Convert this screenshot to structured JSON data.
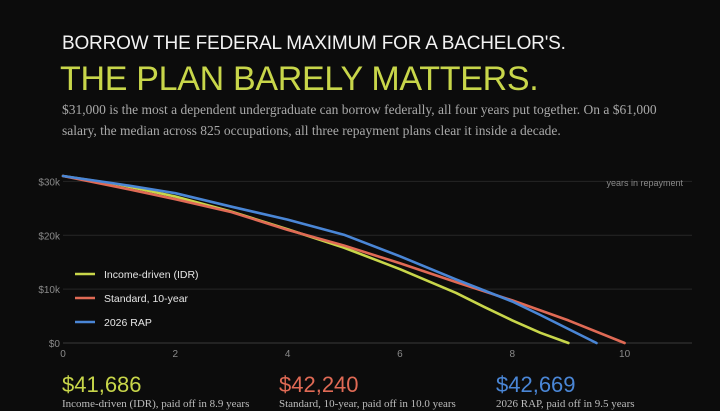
{
  "header": {
    "kicker": "BORROW THE FEDERAL MAXIMUM FOR A BACHELOR'S.",
    "headline": "THE PLAN BARELY MATTERS.",
    "dek": "$31,000 is the most a dependent undergraduate can borrow federally, all four years put together. On a $61,000 salary, the median across 825 occupations, all three repayment plans clear it inside a decade."
  },
  "colors": {
    "background": "#0c0c0c",
    "grid": "#262626",
    "headline": "#c8d64a"
  },
  "chart_data": {
    "type": "line",
    "xlabel": "",
    "ylabel": "",
    "x_note": "years in repayment",
    "xlim": [
      0,
      11.2
    ],
    "ylim": [
      0,
      31000
    ],
    "x_ticks": [
      0,
      2,
      4,
      6,
      8,
      10
    ],
    "x_tick_labels": [
      "0",
      "2",
      "4",
      "6",
      "8",
      "10"
    ],
    "y_ticks": [
      0,
      10000,
      20000,
      30000
    ],
    "y_tick_labels": [
      "$0",
      "$10k",
      "$20k",
      "$30k"
    ],
    "grid": "horizontal",
    "legend": "bottom-left",
    "series": [
      {
        "name": "Income-driven (IDR)",
        "color": "#c8d64a",
        "x": [
          0,
          1,
          2,
          3,
          4,
          5,
          6,
          7,
          7.5,
          8,
          8.5,
          9.0
        ],
        "y": [
          31000,
          29400,
          27200,
          24400,
          21100,
          17700,
          13700,
          9300,
          6700,
          4200,
          1900,
          0
        ]
      },
      {
        "name": "Standard, 10-year",
        "color": "#e06a55",
        "x": [
          0,
          1,
          2,
          3,
          4,
          5,
          6,
          7,
          8,
          9,
          10.0
        ],
        "y": [
          31000,
          28900,
          26700,
          24300,
          21000,
          18100,
          14800,
          11300,
          7900,
          4200,
          0
        ]
      },
      {
        "name": "2026 RAP",
        "color": "#4a86d6",
        "x": [
          0,
          1,
          2,
          3,
          4,
          5,
          6,
          7,
          8,
          8.5,
          9,
          9.5
        ],
        "y": [
          31000,
          29500,
          27800,
          25300,
          22900,
          20100,
          16100,
          11800,
          7700,
          5200,
          2600,
          0
        ]
      }
    ]
  },
  "summary": [
    {
      "total": "$41,686",
      "desc": "Income-driven (IDR), paid off in 8.9 years",
      "color": "#c8d64a"
    },
    {
      "total": "$42,240",
      "desc": "Standard, 10-year, paid off in 10.0 years",
      "color": "#e06a55"
    },
    {
      "total": "$42,669",
      "desc": "2026 RAP, paid off in 9.5 years",
      "color": "#4a86d6"
    }
  ]
}
